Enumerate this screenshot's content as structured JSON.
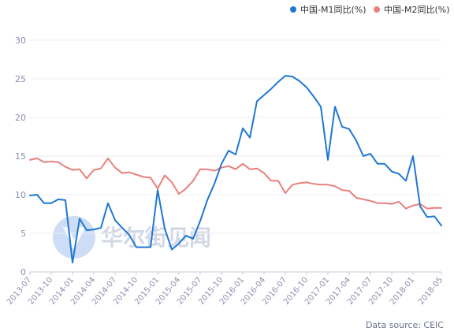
{
  "chart_data": {
    "type": "line",
    "ylim": [
      0,
      30
    ],
    "yticks": [
      0,
      5,
      10,
      15,
      20,
      25,
      30
    ],
    "xticks": [
      "2013-07",
      "2013-10",
      "2014-01",
      "2014-04",
      "2014-07",
      "2014-10",
      "2015-01",
      "2015-04",
      "2015-07",
      "2015-10",
      "2016-01",
      "2016-04",
      "2016-07",
      "2016-10",
      "2017-01",
      "2017-04",
      "2017-07",
      "2017-10",
      "2018-01",
      "2018-05"
    ],
    "x": [
      "2013-07",
      "2013-08",
      "2013-09",
      "2013-10",
      "2013-11",
      "2013-12",
      "2014-01",
      "2014-02",
      "2014-03",
      "2014-04",
      "2014-05",
      "2014-06",
      "2014-07",
      "2014-08",
      "2014-09",
      "2014-10",
      "2014-11",
      "2014-12",
      "2015-01",
      "2015-02",
      "2015-03",
      "2015-04",
      "2015-05",
      "2015-06",
      "2015-07",
      "2015-08",
      "2015-09",
      "2015-10",
      "2015-11",
      "2015-12",
      "2016-01",
      "2016-02",
      "2016-03",
      "2016-04",
      "2016-05",
      "2016-06",
      "2016-07",
      "2016-08",
      "2016-09",
      "2016-10",
      "2016-11",
      "2016-12",
      "2017-01",
      "2017-02",
      "2017-03",
      "2017-04",
      "2017-05",
      "2017-06",
      "2017-07",
      "2017-08",
      "2017-09",
      "2017-10",
      "2017-11",
      "2017-12",
      "2018-01",
      "2018-02",
      "2018-03",
      "2018-04",
      "2018-05"
    ],
    "series": [
      {
        "name": "中国-M1同比(%)",
        "color": "#1f77d4",
        "values": [
          9.9,
          10.0,
          8.9,
          8.9,
          9.4,
          9.3,
          1.2,
          6.9,
          5.4,
          5.5,
          5.7,
          8.9,
          6.7,
          5.7,
          4.8,
          3.2,
          3.2,
          3.2,
          10.6,
          5.6,
          2.9,
          3.7,
          4.7,
          4.3,
          6.6,
          9.3,
          11.4,
          14.0,
          15.7,
          15.2,
          18.6,
          17.4,
          22.1,
          22.9,
          23.7,
          24.6,
          25.4,
          25.3,
          24.7,
          23.9,
          22.7,
          21.4,
          14.5,
          21.4,
          18.8,
          18.5,
          17.0,
          15.0,
          15.3,
          14.0,
          14.0,
          13.0,
          12.7,
          11.8,
          15.0,
          8.5,
          7.1,
          7.2,
          6.0
        ]
      },
      {
        "name": "中国-M2同比(%)",
        "color": "#e8807c",
        "values": [
          14.5,
          14.7,
          14.2,
          14.3,
          14.2,
          13.6,
          13.2,
          13.3,
          12.1,
          13.2,
          13.4,
          14.7,
          13.5,
          12.8,
          12.9,
          12.6,
          12.3,
          12.2,
          10.8,
          12.5,
          11.6,
          10.1,
          10.8,
          11.8,
          13.3,
          13.3,
          13.1,
          13.5,
          13.7,
          13.3,
          14.0,
          13.3,
          13.4,
          12.8,
          11.8,
          11.8,
          10.2,
          11.3,
          11.5,
          11.6,
          11.4,
          11.3,
          11.3,
          11.1,
          10.6,
          10.5,
          9.6,
          9.4,
          9.2,
          8.9,
          8.9,
          8.8,
          9.1,
          8.2,
          8.6,
          8.8,
          8.2,
          8.3,
          8.3
        ]
      }
    ],
    "legend_position": "top-right",
    "grid": "horizontal"
  },
  "source": "Data source: CEIC",
  "watermark": "华尔街见闻"
}
